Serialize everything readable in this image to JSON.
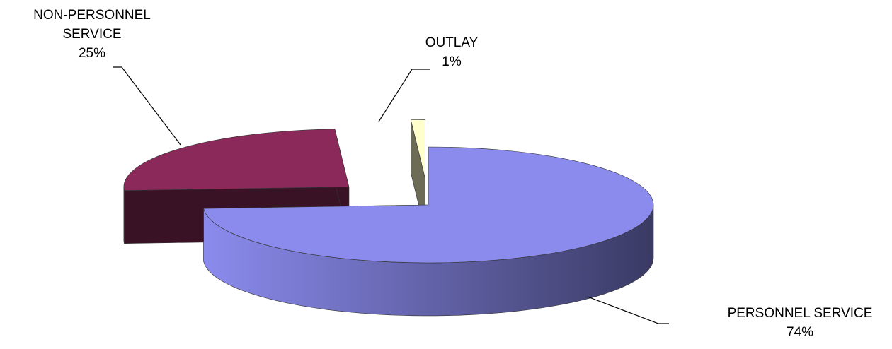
{
  "chart_data": {
    "type": "pie",
    "categories": [
      "PERSONNEL SERVICE",
      "NON-PERSONNEL SERVICE",
      "OUTLAY"
    ],
    "values": [
      74,
      25,
      1
    ],
    "value_labels": [
      "74%",
      "25%",
      "1%"
    ],
    "colors": [
      "#8b8bee",
      "#8b2a5a",
      "#ffffcc"
    ]
  }
}
